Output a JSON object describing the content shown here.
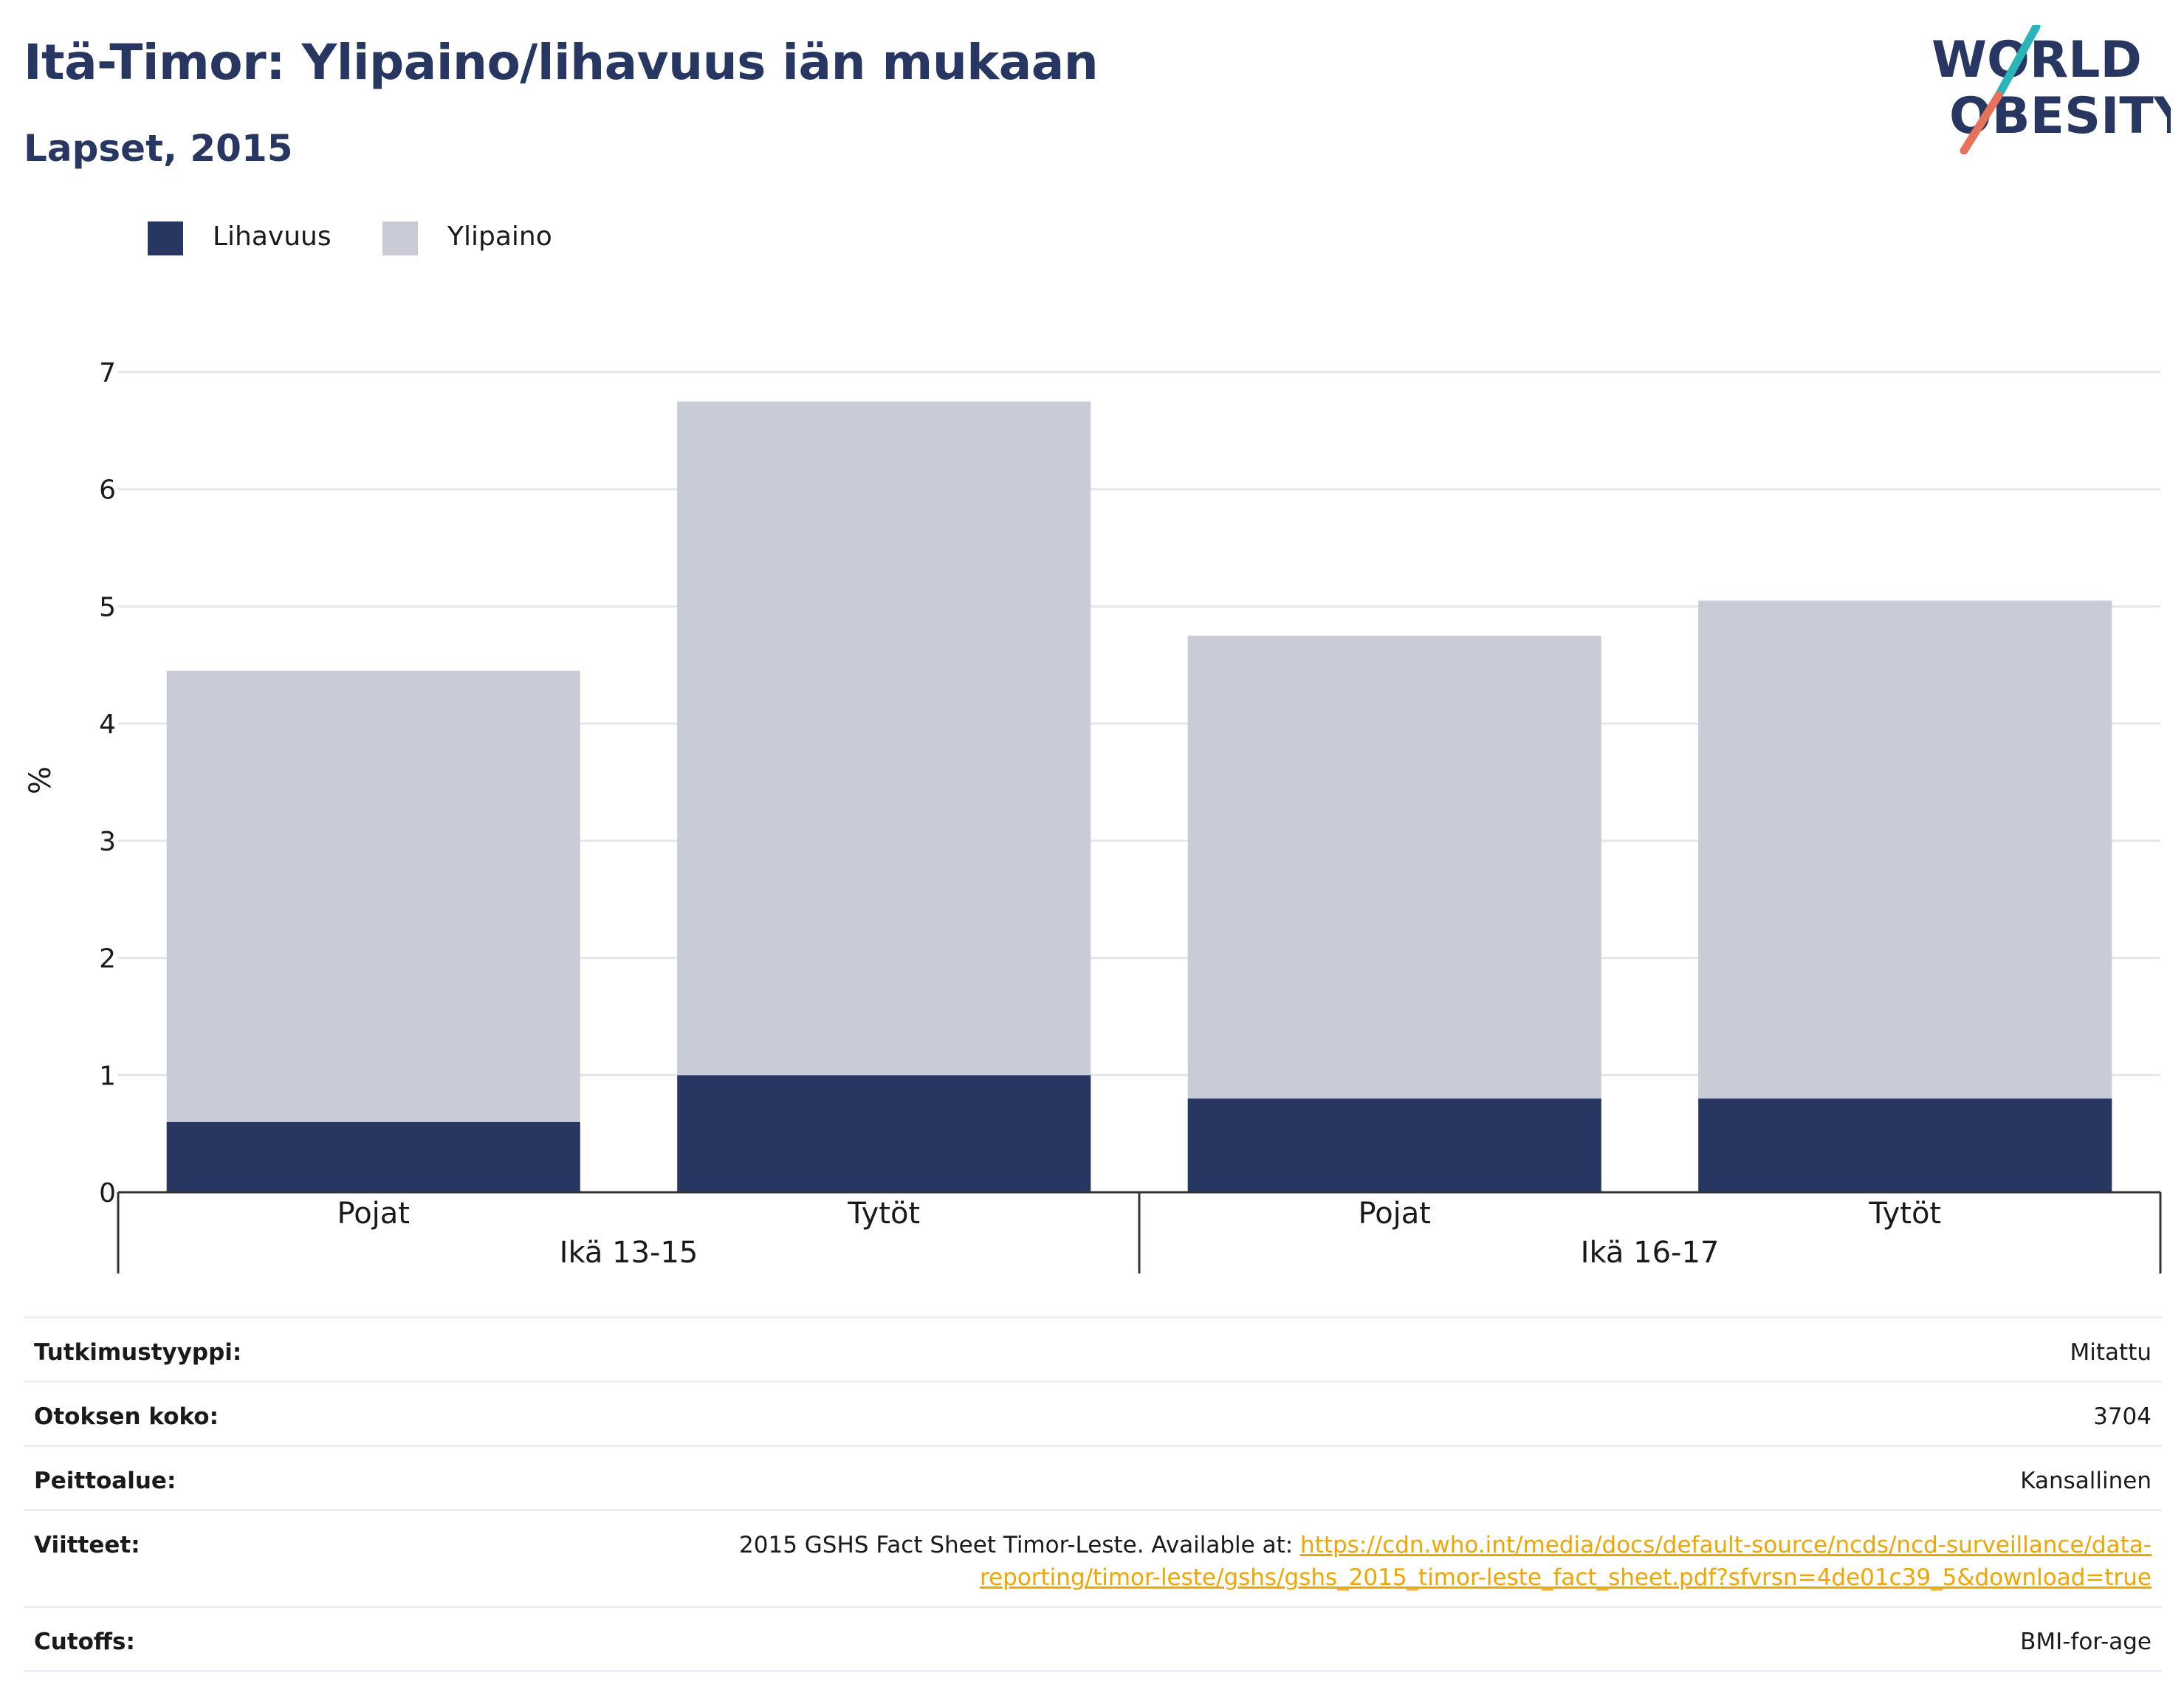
{
  "header": {
    "title": "Itä-Timor: Ylipaino/lihavuus iän mukaan",
    "subtitle": "Lapset, 2015"
  },
  "logo": {
    "line1": "WORLD",
    "line2": "OBESITY",
    "text_color": "#283662",
    "accent_teal": "#2bb5b8",
    "accent_coral": "#e8715b"
  },
  "legend": [
    {
      "label": "Lihavuus",
      "color": "#283662"
    },
    {
      "label": "Ylipaino",
      "color": "#c9cbd6"
    }
  ],
  "chart_data": {
    "type": "bar",
    "stacked": true,
    "ylabel": "%",
    "ylim": [
      0,
      7
    ],
    "yticks": [
      0,
      1,
      2,
      3,
      4,
      5,
      6,
      7
    ],
    "grid": true,
    "legend_position": "top-left",
    "categories": [
      "Pojat",
      "Tytöt",
      "Pojat",
      "Tytöt"
    ],
    "groups": [
      {
        "label": "Ikä 13-15",
        "categories": [
          "Pojat",
          "Tytöt"
        ]
      },
      {
        "label": "Ikä 16-17",
        "categories": [
          "Pojat",
          "Tytöt"
        ]
      }
    ],
    "series": [
      {
        "name": "Lihavuus",
        "color": "#283662",
        "values": [
          0.6,
          1.0,
          0.8,
          0.8
        ]
      },
      {
        "name": "Ylipaino",
        "color": "#c9cbd6",
        "values": [
          3.85,
          5.75,
          3.95,
          4.25
        ]
      }
    ]
  },
  "info": {
    "study_type": {
      "label": "Tutkimustyyppi:",
      "value": "Mitattu"
    },
    "sample_size": {
      "label": "Otoksen koko:",
      "value": "3704"
    },
    "coverage": {
      "label": "Peittoalue:",
      "value": "Kansallinen"
    },
    "references": {
      "label": "Viitteet:",
      "text": "2015 GSHS Fact Sheet Timor-Leste. Available at: ",
      "link_line1": "https://cdn.who.int/media/docs/default-source/ncds/ncd-surveillance/data-",
      "link_line2": "reporting/timor-leste/gshs/gshs_2015_timor-leste_fact_sheet.pdf?sfvrsn=4de01c39_5&download=true"
    },
    "cutoffs": {
      "label": "Cutoffs:",
      "value": "BMI-for-age"
    }
  }
}
